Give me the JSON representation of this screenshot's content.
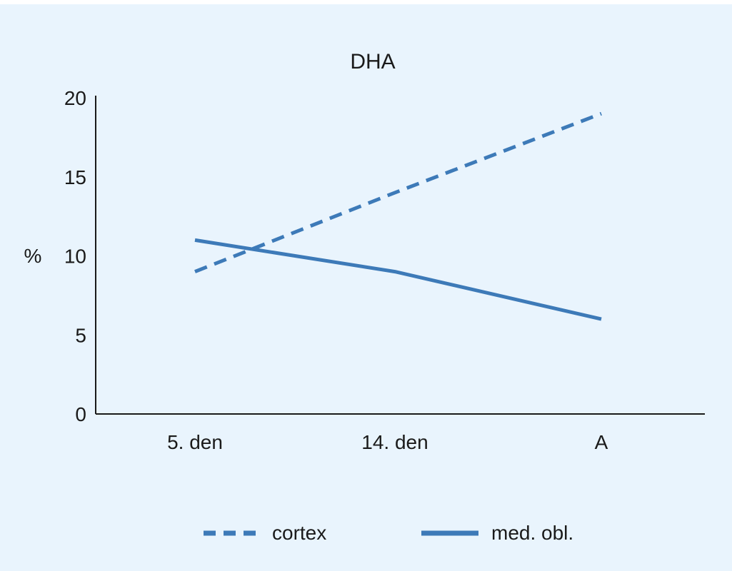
{
  "chart_data": {
    "type": "line",
    "title": "DHA",
    "ylabel": "%",
    "xlabel": "",
    "categories": [
      "5. den",
      "14. den",
      "A"
    ],
    "ylim": [
      0,
      20
    ],
    "yticks": [
      "0",
      "5",
      "10",
      "15",
      "20"
    ],
    "series": [
      {
        "name": "cortex",
        "values": [
          9,
          14,
          19
        ],
        "style": "dashed",
        "color": "#3d7ab8"
      },
      {
        "name": "med. obl.",
        "values": [
          11,
          9,
          6
        ],
        "style": "solid",
        "color": "#3d7ab8"
      }
    ],
    "grid": false,
    "legend": "bottom"
  }
}
